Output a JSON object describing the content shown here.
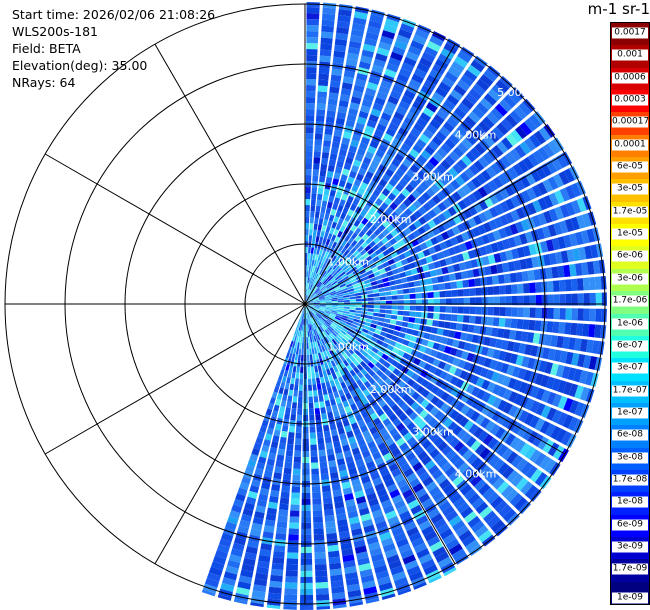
{
  "header": {
    "start_time": "Start time: 2026/02/06 21:08:26",
    "instrument": "WLS200s-181",
    "field": "Field: BETA",
    "elevation": "Elevation(deg): 35.00",
    "nrays": "NRays: 64"
  },
  "colorbar": {
    "title": "m-1 sr-1",
    "ticks": [
      "0.0017",
      "0.001",
      "0.0006",
      "0.0003",
      "0.00017",
      "0.0001",
      "6e-05",
      "3e-05",
      "1.7e-05",
      "1e-05",
      "6e-06",
      "3e-06",
      "1.7e-06",
      "1e-06",
      "6e-07",
      "3e-07",
      "1.7e-07",
      "1e-07",
      "6e-08",
      "3e-08",
      "1.7e-08",
      "1e-08",
      "6e-09",
      "3e-09",
      "1.7e-09",
      "1e-09"
    ],
    "colors": [
      "#8b0000",
      "#b00000",
      "#d80000",
      "#ff0000",
      "#ff4000",
      "#ff8000",
      "#ffa000",
      "#ffc000",
      "#ffe000",
      "#ffff00",
      "#e0ff20",
      "#b0ff50",
      "#80ff80",
      "#50ffb0",
      "#20ffe0",
      "#00e0ff",
      "#00c0ff",
      "#00a0ff",
      "#0080ff",
      "#0060ff",
      "#0040ff",
      "#0020ff",
      "#0000ff",
      "#0000d0",
      "#0000a0",
      "#000080"
    ]
  },
  "chart_data": {
    "type": "polar-ppi",
    "field": "BETA",
    "units": "m-1 sr-1",
    "range_rings_km": [
      1,
      2,
      3,
      4,
      5
    ],
    "range_labels": [
      "1.00km",
      "2.00km",
      "3.00km",
      "4.00km",
      "5.00km"
    ],
    "azimuth_sector_deg": [
      0,
      200
    ],
    "nrays": 64,
    "radial_lines_every_deg": 30,
    "dominant_value_range": [
      1e-08,
      1e-07
    ],
    "near_field_value_range": [
      1e-07,
      3e-07
    ]
  }
}
